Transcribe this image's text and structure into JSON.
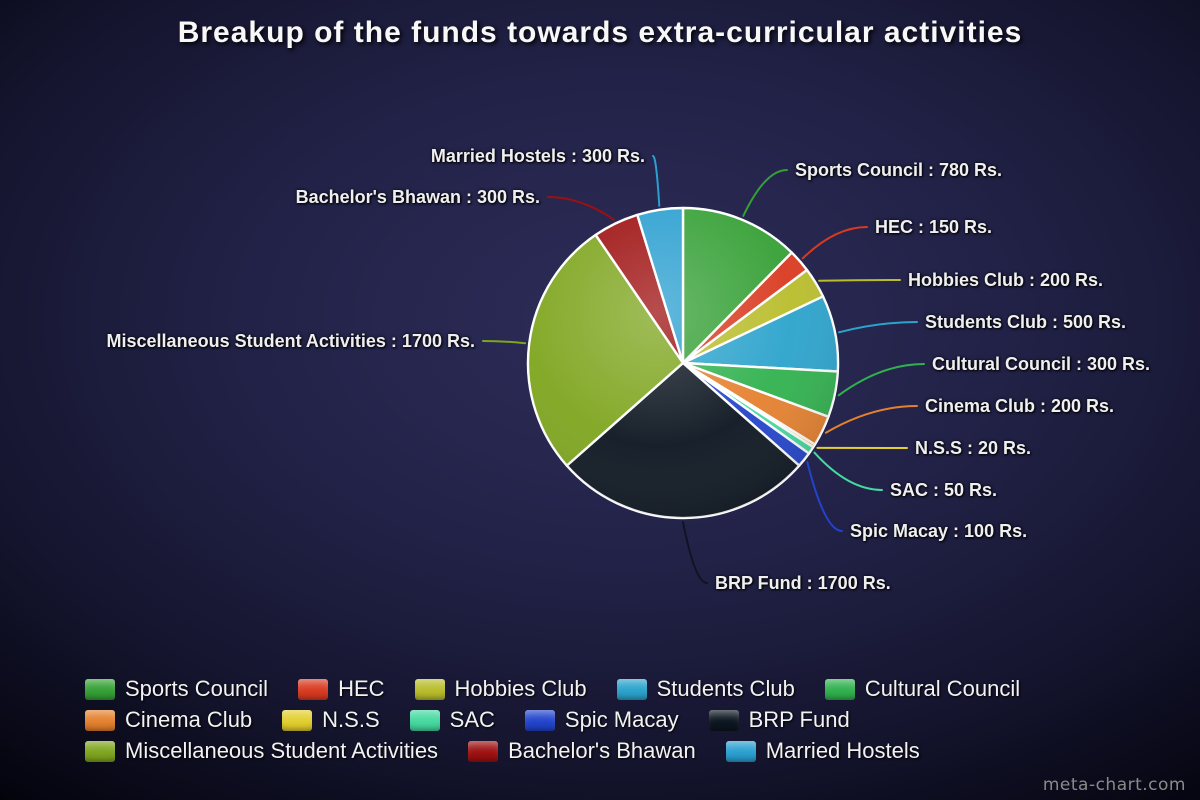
{
  "title": "Breakup of the funds towards extra-curricular activities",
  "watermark": "meta-chart.com",
  "chart_data": {
    "type": "pie",
    "title": "Breakup of the funds towards extra-curricular activities",
    "unit": "Rs.",
    "label_format": "{label} : {value} Rs.",
    "legend_position": "bottom",
    "slices": [
      {
        "label": "Sports Council",
        "value": 780,
        "color": "#35a035"
      },
      {
        "label": "HEC",
        "value": 150,
        "color": "#d93a20"
      },
      {
        "label": "Hobbies Club",
        "value": 200,
        "color": "#b9bd2b"
      },
      {
        "label": "Students Club",
        "value": 500,
        "color": "#2ba3cc"
      },
      {
        "label": "Cultural Council",
        "value": 300,
        "color": "#30b14e"
      },
      {
        "label": "Cinema Club",
        "value": 200,
        "color": "#e5802e"
      },
      {
        "label": "N.S.S",
        "value": 20,
        "color": "#e3cf2e"
      },
      {
        "label": "SAC",
        "value": 50,
        "color": "#45d9a0"
      },
      {
        "label": "Spic Macay",
        "value": 100,
        "color": "#2244cc"
      },
      {
        "label": "BRP Fund",
        "value": 1700,
        "color": "#0c1520"
      },
      {
        "label": "Miscellaneous Student Activities",
        "value": 1700,
        "color": "#7ea51e"
      },
      {
        "label": "Bachelor's Bhawan",
        "value": 300,
        "color": "#9e1010"
      },
      {
        "label": "Married Hostels",
        "value": 300,
        "color": "#2a9fd0"
      }
    ]
  }
}
